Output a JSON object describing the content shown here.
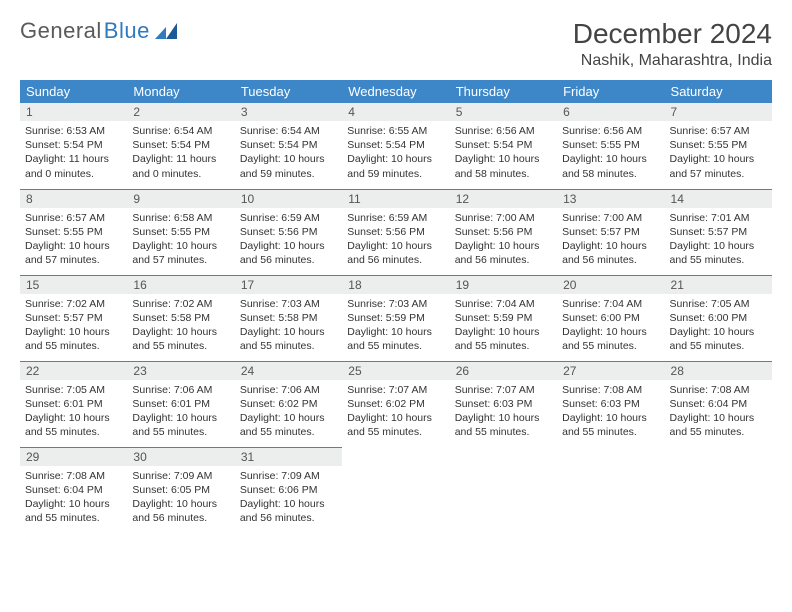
{
  "logo": {
    "word1": "General",
    "word2": "Blue"
  },
  "title": "December 2024",
  "location": "Nashik, Maharashtra, India",
  "colors": {
    "header_bg": "#3d87c9",
    "header_fg": "#ffffff",
    "cell_border": "#3d87c9",
    "daynum_bg": "#eceded",
    "text": "#333333",
    "logo_gray": "#5a5a5a",
    "logo_blue": "#2f7ac0",
    "page_bg": "#ffffff"
  },
  "weekdays": [
    "Sunday",
    "Monday",
    "Tuesday",
    "Wednesday",
    "Thursday",
    "Friday",
    "Saturday"
  ],
  "days": [
    {
      "n": 1,
      "sr": "6:53 AM",
      "ss": "5:54 PM",
      "dl": "11 hours and 0 minutes."
    },
    {
      "n": 2,
      "sr": "6:54 AM",
      "ss": "5:54 PM",
      "dl": "11 hours and 0 minutes."
    },
    {
      "n": 3,
      "sr": "6:54 AM",
      "ss": "5:54 PM",
      "dl": "10 hours and 59 minutes."
    },
    {
      "n": 4,
      "sr": "6:55 AM",
      "ss": "5:54 PM",
      "dl": "10 hours and 59 minutes."
    },
    {
      "n": 5,
      "sr": "6:56 AM",
      "ss": "5:54 PM",
      "dl": "10 hours and 58 minutes."
    },
    {
      "n": 6,
      "sr": "6:56 AM",
      "ss": "5:55 PM",
      "dl": "10 hours and 58 minutes."
    },
    {
      "n": 7,
      "sr": "6:57 AM",
      "ss": "5:55 PM",
      "dl": "10 hours and 57 minutes."
    },
    {
      "n": 8,
      "sr": "6:57 AM",
      "ss": "5:55 PM",
      "dl": "10 hours and 57 minutes."
    },
    {
      "n": 9,
      "sr": "6:58 AM",
      "ss": "5:55 PM",
      "dl": "10 hours and 57 minutes."
    },
    {
      "n": 10,
      "sr": "6:59 AM",
      "ss": "5:56 PM",
      "dl": "10 hours and 56 minutes."
    },
    {
      "n": 11,
      "sr": "6:59 AM",
      "ss": "5:56 PM",
      "dl": "10 hours and 56 minutes."
    },
    {
      "n": 12,
      "sr": "7:00 AM",
      "ss": "5:56 PM",
      "dl": "10 hours and 56 minutes."
    },
    {
      "n": 13,
      "sr": "7:00 AM",
      "ss": "5:57 PM",
      "dl": "10 hours and 56 minutes."
    },
    {
      "n": 14,
      "sr": "7:01 AM",
      "ss": "5:57 PM",
      "dl": "10 hours and 55 minutes."
    },
    {
      "n": 15,
      "sr": "7:02 AM",
      "ss": "5:57 PM",
      "dl": "10 hours and 55 minutes."
    },
    {
      "n": 16,
      "sr": "7:02 AM",
      "ss": "5:58 PM",
      "dl": "10 hours and 55 minutes."
    },
    {
      "n": 17,
      "sr": "7:03 AM",
      "ss": "5:58 PM",
      "dl": "10 hours and 55 minutes."
    },
    {
      "n": 18,
      "sr": "7:03 AM",
      "ss": "5:59 PM",
      "dl": "10 hours and 55 minutes."
    },
    {
      "n": 19,
      "sr": "7:04 AM",
      "ss": "5:59 PM",
      "dl": "10 hours and 55 minutes."
    },
    {
      "n": 20,
      "sr": "7:04 AM",
      "ss": "6:00 PM",
      "dl": "10 hours and 55 minutes."
    },
    {
      "n": 21,
      "sr": "7:05 AM",
      "ss": "6:00 PM",
      "dl": "10 hours and 55 minutes."
    },
    {
      "n": 22,
      "sr": "7:05 AM",
      "ss": "6:01 PM",
      "dl": "10 hours and 55 minutes."
    },
    {
      "n": 23,
      "sr": "7:06 AM",
      "ss": "6:01 PM",
      "dl": "10 hours and 55 minutes."
    },
    {
      "n": 24,
      "sr": "7:06 AM",
      "ss": "6:02 PM",
      "dl": "10 hours and 55 minutes."
    },
    {
      "n": 25,
      "sr": "7:07 AM",
      "ss": "6:02 PM",
      "dl": "10 hours and 55 minutes."
    },
    {
      "n": 26,
      "sr": "7:07 AM",
      "ss": "6:03 PM",
      "dl": "10 hours and 55 minutes."
    },
    {
      "n": 27,
      "sr": "7:08 AM",
      "ss": "6:03 PM",
      "dl": "10 hours and 55 minutes."
    },
    {
      "n": 28,
      "sr": "7:08 AM",
      "ss": "6:04 PM",
      "dl": "10 hours and 55 minutes."
    },
    {
      "n": 29,
      "sr": "7:08 AM",
      "ss": "6:04 PM",
      "dl": "10 hours and 55 minutes."
    },
    {
      "n": 30,
      "sr": "7:09 AM",
      "ss": "6:05 PM",
      "dl": "10 hours and 56 minutes."
    },
    {
      "n": 31,
      "sr": "7:09 AM",
      "ss": "6:06 PM",
      "dl": "10 hours and 56 minutes."
    }
  ],
  "labels": {
    "sunrise": "Sunrise:",
    "sunset": "Sunset:",
    "daylight": "Daylight:"
  },
  "layout": {
    "columns": 7,
    "rows": 5,
    "start_weekday_index": 0,
    "trailing_empty": 4
  }
}
